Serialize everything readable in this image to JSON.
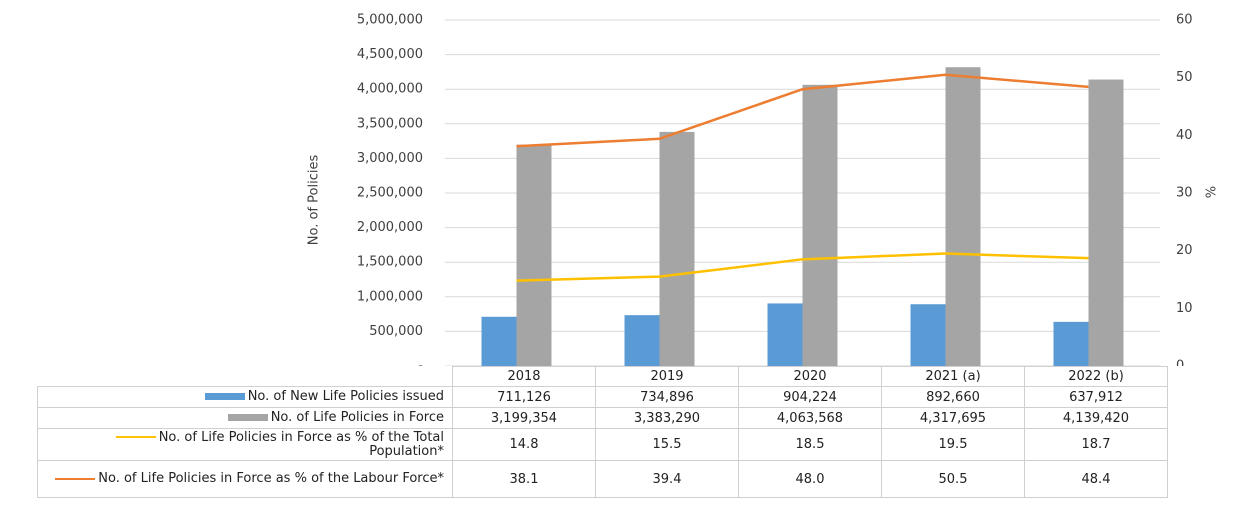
{
  "chart_data": {
    "type": "bar",
    "categories": [
      "2018",
      "2019",
      "2020",
      "2021 (a)",
      "2022 (b)"
    ],
    "series": [
      {
        "name": "No. of New Life Policies issued",
        "color": "#5b9bd5",
        "type": "bar",
        "axis": "y",
        "values": [
          711126,
          734896,
          904224,
          892660,
          637912
        ],
        "value_labels": [
          "711,126",
          "734,896",
          "904,224",
          "892,660",
          "637,912"
        ]
      },
      {
        "name": "No. of Life Policies in Force",
        "color": "#a5a5a5",
        "type": "bar",
        "axis": "y",
        "values": [
          3199354,
          3383290,
          4063568,
          4317695,
          4139420
        ],
        "value_labels": [
          "3,199,354",
          "3,383,290",
          "4,063,568",
          "4,317,695",
          "4,139,420"
        ]
      },
      {
        "name": "No. of Life Policies in Force as % of the Total Population*",
        "color": "#ffc000",
        "type": "line",
        "axis": "y2",
        "values": [
          14.8,
          15.5,
          18.5,
          19.5,
          18.7
        ],
        "value_labels": [
          "14.8",
          "15.5",
          "18.5",
          "19.5",
          "18.7"
        ]
      },
      {
        "name": "No. of Life Policies in Force as % of the Labour Force*",
        "color": "#ed7d31",
        "type": "line",
        "axis": "y2",
        "values": [
          38.1,
          39.4,
          48.0,
          50.5,
          48.4
        ],
        "value_labels": [
          "38.1",
          "39.4",
          "48.0",
          "50.5",
          "48.4"
        ]
      }
    ],
    "y_label": "No. of Policies",
    "y2_label": "%",
    "ylim": [
      0,
      5000000
    ],
    "yticks": [
      {
        "value": 0,
        "label": "-"
      },
      {
        "value": 500000,
        "label": "500,000"
      },
      {
        "value": 1000000,
        "label": "1,000,000"
      },
      {
        "value": 1500000,
        "label": "1,500,000"
      },
      {
        "value": 2000000,
        "label": "2,000,000"
      },
      {
        "value": 2500000,
        "label": "2,500,000"
      },
      {
        "value": 3000000,
        "label": "3,000,000"
      },
      {
        "value": 3500000,
        "label": "3,500,000"
      },
      {
        "value": 4000000,
        "label": "4,000,000"
      },
      {
        "value": 4500000,
        "label": "4,500,000"
      },
      {
        "value": 5000000,
        "label": "5,000,000"
      }
    ],
    "y2lim": [
      0,
      60
    ],
    "y2ticks": [
      0,
      10,
      20,
      30,
      40,
      50,
      60
    ],
    "grid": true
  }
}
